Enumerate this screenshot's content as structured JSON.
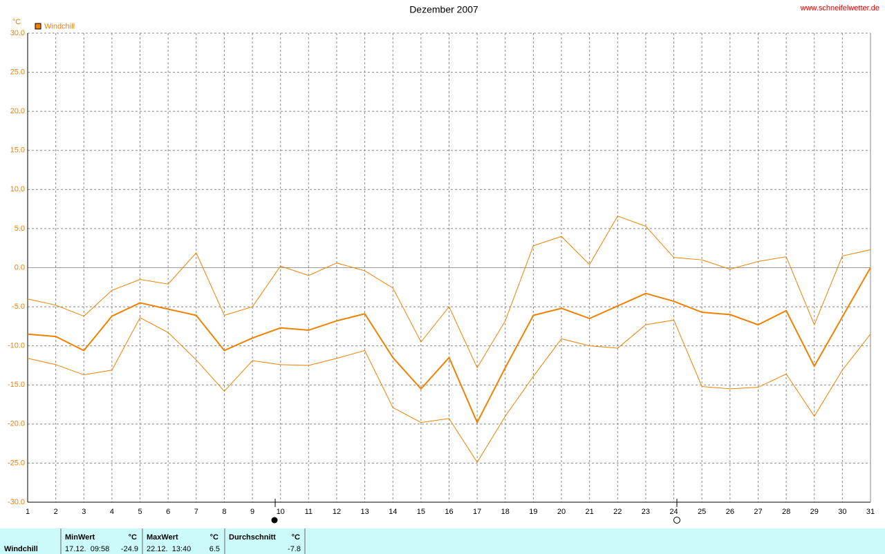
{
  "chart_data": {
    "type": "line",
    "title": "Dezember 2007",
    "source": "www.schneifelwetter.de",
    "y_unit": "°C",
    "x": [
      1,
      2,
      3,
      4,
      5,
      6,
      7,
      8,
      9,
      10,
      11,
      12,
      13,
      14,
      15,
      16,
      17,
      18,
      19,
      20,
      21,
      22,
      23,
      24,
      25,
      26,
      27,
      28,
      29,
      30,
      31
    ],
    "xticks": [
      1,
      2,
      3,
      4,
      5,
      6,
      7,
      8,
      9,
      10,
      11,
      12,
      13,
      14,
      15,
      16,
      17,
      18,
      19,
      20,
      21,
      22,
      23,
      24,
      25,
      26,
      27,
      28,
      29,
      30,
      31
    ],
    "xlim": [
      1,
      31
    ],
    "ylim": [
      -30,
      30
    ],
    "yticks": [
      {
        "value": -30,
        "label": "-30.0"
      },
      {
        "value": -25,
        "label": "-25.0"
      },
      {
        "value": -20,
        "label": "-20.0"
      },
      {
        "value": -15,
        "label": "-15.0"
      },
      {
        "value": -10,
        "label": "-10.0"
      },
      {
        "value": -5,
        "label": "-5.0"
      },
      {
        "value": 0,
        "label": "0.0"
      },
      {
        "value": 5,
        "label": "5.0"
      },
      {
        "value": 10,
        "label": "10.0"
      },
      {
        "value": 15,
        "label": "15.0"
      },
      {
        "value": 20,
        "label": "20.0"
      },
      {
        "value": 25,
        "label": "25.0"
      },
      {
        "value": 30,
        "label": "30.0"
      }
    ],
    "grid": true,
    "series": [
      {
        "name": "Windchill",
        "color": "#f08000",
        "values": [
          -8.5,
          -8.8,
          -10.6,
          -6.2,
          -4.5,
          -5.3,
          -6.1,
          -10.6,
          -9.0,
          -7.7,
          -8.0,
          -6.8,
          -5.9,
          -11.5,
          -15.5,
          -11.5,
          -19.8,
          -12.8,
          -6.1,
          -5.2,
          -6.5,
          -4.9,
          -3.3,
          -4.3,
          -5.7,
          -6.0,
          -7.3,
          -5.5,
          -12.6,
          -6.3,
          0.0
        ]
      },
      {
        "color": "#f08000",
        "values": [
          -4.0,
          -4.8,
          -6.2,
          -2.9,
          -1.5,
          -2.1,
          1.9,
          -6.1,
          -5.0,
          0.2,
          -1.0,
          0.6,
          -0.4,
          -2.6,
          -9.5,
          -5.0,
          -12.8,
          -6.8,
          2.8,
          4.0,
          0.4,
          6.6,
          5.3,
          1.3,
          1.0,
          -0.2,
          0.8,
          1.4,
          -7.3,
          1.5,
          2.3
        ]
      },
      {
        "color": "#f08000",
        "values": [
          -11.6,
          -12.4,
          -13.7,
          -13.1,
          -6.4,
          -8.3,
          -11.8,
          -15.8,
          -11.9,
          -12.4,
          -12.5,
          -11.6,
          -10.6,
          -17.9,
          -19.8,
          -19.3,
          -24.9,
          -19.0,
          -13.9,
          -9.1,
          -10.0,
          -10.3,
          -7.3,
          -6.7,
          -15.2,
          -15.5,
          -15.3,
          -13.6,
          -19.0,
          -13.1,
          -8.5
        ]
      }
    ]
  },
  "summary": {
    "label": "Windchill",
    "min": {
      "header": "MinWert",
      "unit": "°C",
      "time": "17.12.  09:58",
      "value": "-24.9"
    },
    "max": {
      "header": "MaxWert",
      "unit": "°C",
      "time": "22.12.  13:40",
      "value": "6.5"
    },
    "avg": {
      "header": "Durchschnitt",
      "unit": "°C",
      "value": "-7.8"
    }
  }
}
